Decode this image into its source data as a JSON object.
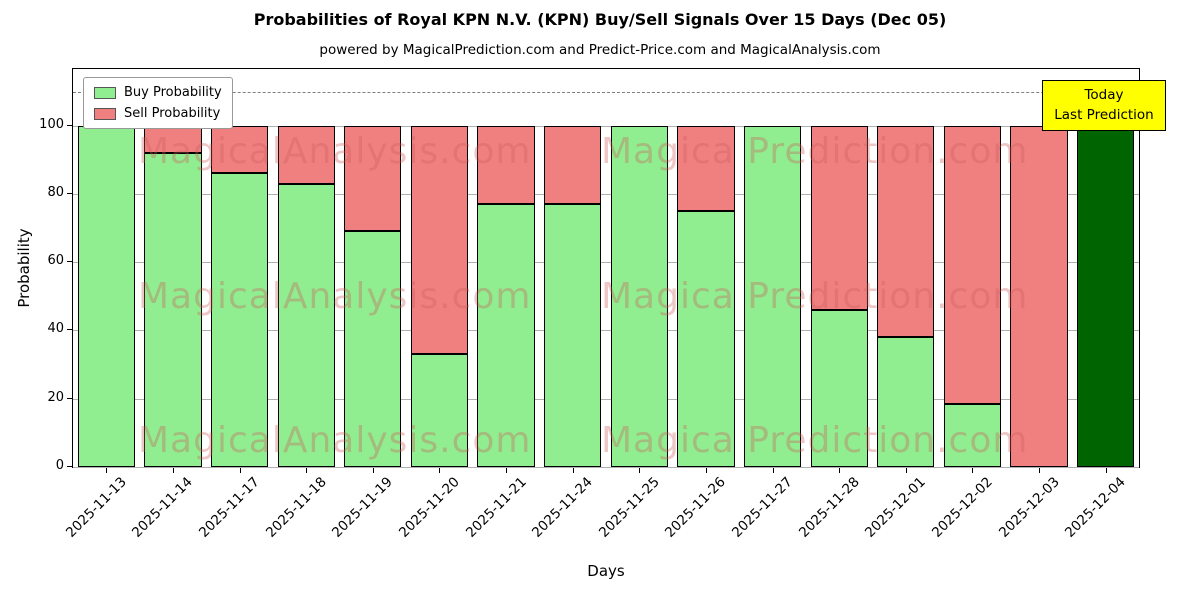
{
  "figure": {
    "title": "Probabilities of Royal KPN N.V. (KPN) Buy/Sell Signals Over 15 Days (Dec 05)",
    "subtitle": "powered by MagicalPrediction.com and Predict-Price.com and MagicalAnalysis.com"
  },
  "legend": {
    "buy_label": "Buy Probability",
    "sell_label": "Sell Probability"
  },
  "today_box": {
    "line1": "Today",
    "line2": "Last Prediction"
  },
  "watermarks": {
    "left_text": "MagicalAnalysis.com",
    "right_text": "Magica Prediction.com"
  },
  "colors": {
    "buy": "#90ee90",
    "sell": "#f08080",
    "last_bar": "#006400",
    "today_bg": "#ffff00",
    "grid": "#b0b0b0",
    "watermark": "rgba(205,92,92,0.35)"
  },
  "chart_data": {
    "type": "bar",
    "stacked": true,
    "title": "Probabilities of Royal KPN N.V. (KPN) Buy/Sell Signals Over 15 Days (Dec 05)",
    "xlabel": "Days",
    "ylabel": "Probability",
    "categories": [
      "2025-11-13",
      "2025-11-14",
      "2025-11-17",
      "2025-11-18",
      "2025-11-19",
      "2025-11-20",
      "2025-11-21",
      "2025-11-24",
      "2025-11-25",
      "2025-11-26",
      "2025-11-27",
      "2025-11-28",
      "2025-12-01",
      "2025-12-02",
      "2025-12-03",
      "2025-12-04"
    ],
    "series": [
      {
        "name": "Buy Probability",
        "color": "#90ee90",
        "values": [
          100,
          92,
          86,
          83,
          69,
          33,
          77,
          77,
          100,
          75,
          100,
          46,
          38,
          18.5,
          0,
          100
        ]
      },
      {
        "name": "Sell Probability",
        "color": "#f08080",
        "values": [
          0,
          8,
          14,
          17,
          31,
          67,
          23,
          23,
          0,
          25,
          0,
          54,
          62,
          81.5,
          100,
          0
        ]
      }
    ],
    "highlight_last_bar": {
      "index": 15,
      "color": "#006400"
    },
    "yticks": [
      0,
      20,
      40,
      60,
      80,
      100
    ],
    "ylim": [
      0,
      116.6
    ],
    "dashed_line_y": 110,
    "legend_position": "upper-left",
    "grid": "horizontal"
  }
}
